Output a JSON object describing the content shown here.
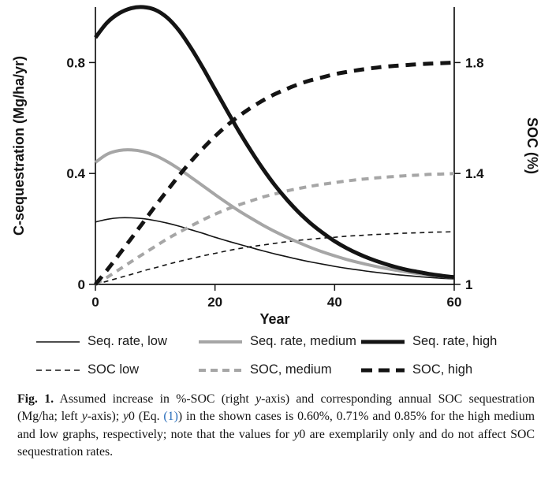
{
  "figure": {
    "caption_segments": [
      {
        "text": "Fig. 1.",
        "style": "bold"
      },
      {
        "text": " Assumed increase in %-SOC (right ",
        "style": "normal"
      },
      {
        "text": "y",
        "style": "italic"
      },
      {
        "text": "-axis) and corresponding annual SOC sequestration (Mg/ha; left ",
        "style": "normal"
      },
      {
        "text": "y",
        "style": "italic"
      },
      {
        "text": "-axis); ",
        "style": "normal"
      },
      {
        "text": "y",
        "style": "italic"
      },
      {
        "text": "0 (Eq. ",
        "style": "normal"
      },
      {
        "text": "(1)",
        "style": "link"
      },
      {
        "text": ") in the shown cases is 0.60%, 0.71% and 0.85% for the high medium and low graphs, respectively; note that the values for ",
        "style": "normal"
      },
      {
        "text": "y",
        "style": "italic"
      },
      {
        "text": "0 are exemplarily only and do not affect SOC sequestration rates.",
        "style": "normal"
      }
    ]
  },
  "colors": {
    "text": "#141414",
    "link": "#2a6ebb",
    "series_black": "#141414",
    "series_gray": "#a6a6a6"
  },
  "chart_data": {
    "type": "line",
    "xlabel": "Year",
    "grid": false,
    "legend_position": "below",
    "x_axis": {
      "lim": [
        0,
        60
      ],
      "ticks": [
        0,
        20,
        40,
        60
      ],
      "tick_labels": [
        "0",
        "20",
        "40",
        "60"
      ]
    },
    "left_axis": {
      "label": "C-sequestration (Mg/ha/yr)",
      "lim": [
        0,
        1.0
      ],
      "ticks": [
        0,
        0.4,
        0.8
      ],
      "tick_labels": [
        "0",
        "0.4",
        "0.8"
      ]
    },
    "right_axis": {
      "label": "SOC (%)",
      "lim": [
        1,
        2.0
      ],
      "ticks": [
        1,
        1.4,
        1.8
      ],
      "tick_labels": [
        "1",
        "1.4",
        "1.8"
      ]
    },
    "x": [
      0,
      2,
      4,
      6,
      8,
      10,
      12,
      14,
      16,
      18,
      20,
      22,
      24,
      26,
      28,
      30,
      32,
      34,
      36,
      38,
      40,
      42,
      44,
      46,
      48,
      50,
      52,
      54,
      56,
      58,
      60
    ],
    "series": [
      {
        "name": "Seq. rate, low",
        "axis": "left",
        "line": "solid",
        "color": "#141414",
        "width": 1.6,
        "dash": "",
        "values": [
          0.225,
          0.235,
          0.24,
          0.24,
          0.237,
          0.23,
          0.221,
          0.21,
          0.197,
          0.184,
          0.17,
          0.157,
          0.145,
          0.133,
          0.121,
          0.11,
          0.1,
          0.09,
          0.081,
          0.073,
          0.065,
          0.058,
          0.052,
          0.046,
          0.041,
          0.036,
          0.032,
          0.028,
          0.025,
          0.022,
          0.02
        ]
      },
      {
        "name": "Seq. rate, medium",
        "axis": "left",
        "line": "solid",
        "color": "#a6a6a6",
        "width": 4,
        "dash": "",
        "values": [
          0.44,
          0.47,
          0.483,
          0.485,
          0.479,
          0.465,
          0.443,
          0.416,
          0.386,
          0.355,
          0.324,
          0.294,
          0.265,
          0.239,
          0.214,
          0.191,
          0.17,
          0.151,
          0.133,
          0.117,
          0.103,
          0.09,
          0.079,
          0.069,
          0.06,
          0.052,
          0.045,
          0.039,
          0.034,
          0.029,
          0.025
        ]
      },
      {
        "name": "Seq. rate, high",
        "axis": "left",
        "line": "solid",
        "color": "#141414",
        "width": 5,
        "dash": "",
        "values": [
          0.89,
          0.945,
          0.978,
          0.996,
          1.0,
          0.99,
          0.962,
          0.915,
          0.852,
          0.78,
          0.703,
          0.627,
          0.552,
          0.482,
          0.417,
          0.358,
          0.306,
          0.26,
          0.22,
          0.186,
          0.156,
          0.131,
          0.11,
          0.092,
          0.077,
          0.064,
          0.053,
          0.045,
          0.037,
          0.031,
          0.026
        ]
      },
      {
        "name": "SOC low",
        "axis": "right",
        "line": "dashed",
        "color": "#141414",
        "width": 1.6,
        "dash": "6 5",
        "values": [
          1.0,
          1.012,
          1.024,
          1.036,
          1.049,
          1.06,
          1.072,
          1.083,
          1.093,
          1.103,
          1.112,
          1.121,
          1.129,
          1.136,
          1.142,
          1.148,
          1.154,
          1.159,
          1.163,
          1.167,
          1.17,
          1.174,
          1.176,
          1.179,
          1.181,
          1.183,
          1.185,
          1.186,
          1.188,
          1.189,
          1.19
        ]
      },
      {
        "name": "SOC, medium",
        "axis": "right",
        "line": "dashed",
        "color": "#a6a6a6",
        "width": 4,
        "dash": "9 7",
        "values": [
          1.0,
          1.026,
          1.054,
          1.082,
          1.11,
          1.137,
          1.164,
          1.188,
          1.211,
          1.233,
          1.253,
          1.271,
          1.287,
          1.301,
          1.315,
          1.326,
          1.337,
          1.346,
          1.354,
          1.361,
          1.367,
          1.373,
          1.378,
          1.382,
          1.386,
          1.389,
          1.392,
          1.394,
          1.397,
          1.398,
          1.4
        ]
      },
      {
        "name": "SOC, high",
        "axis": "right",
        "line": "dashed",
        "color": "#141414",
        "width": 5,
        "dash": "13 9",
        "values": [
          1.0,
          1.053,
          1.109,
          1.166,
          1.224,
          1.282,
          1.338,
          1.393,
          1.444,
          1.491,
          1.534,
          1.573,
          1.607,
          1.637,
          1.663,
          1.686,
          1.705,
          1.722,
          1.736,
          1.747,
          1.758,
          1.766,
          1.773,
          1.779,
          1.784,
          1.788,
          1.791,
          1.794,
          1.796,
          1.798,
          1.8
        ]
      }
    ],
    "legend_rows": [
      [
        0,
        1,
        2
      ],
      [
        3,
        4,
        5
      ]
    ],
    "legend_sample_dashes": [
      "",
      "",
      "",
      "7 5",
      "9 6",
      "14 8"
    ]
  }
}
